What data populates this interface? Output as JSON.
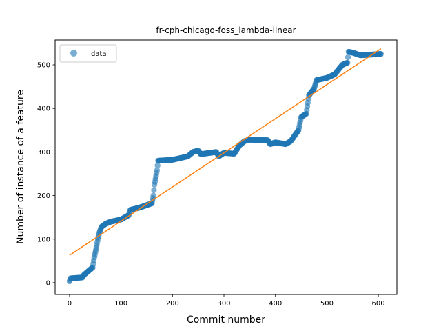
{
  "chart_data": {
    "type": "scatter",
    "title": "fr-cph-chicago-foss_lambda-linear",
    "xlabel": "Commit number",
    "ylabel": "Number of instance of a feature",
    "xlim": [
      -28,
      636
    ],
    "ylim": [
      -27,
      557
    ],
    "xticks": [
      0,
      100,
      200,
      300,
      400,
      500,
      600
    ],
    "yticks": [
      0,
      100,
      200,
      300,
      400,
      500
    ],
    "grid": false,
    "legend": {
      "position": "top-left",
      "entries": [
        "data"
      ]
    },
    "colors": {
      "data": "#1f77b4",
      "fit": "#ff7f0e"
    },
    "series": [
      {
        "name": "data",
        "kind": "scatter",
        "anchors": [
          [
            0,
            3
          ],
          [
            2,
            10
          ],
          [
            25,
            12
          ],
          [
            28,
            18
          ],
          [
            35,
            25
          ],
          [
            45,
            35
          ],
          [
            48,
            58
          ],
          [
            52,
            80
          ],
          [
            55,
            100
          ],
          [
            58,
            115
          ],
          [
            62,
            128
          ],
          [
            70,
            135
          ],
          [
            80,
            140
          ],
          [
            100,
            145
          ],
          [
            115,
            155
          ],
          [
            118,
            167
          ],
          [
            135,
            172
          ],
          [
            150,
            178
          ],
          [
            160,
            182
          ],
          [
            163,
            200
          ],
          [
            165,
            225
          ],
          [
            170,
            258
          ],
          [
            172,
            280
          ],
          [
            200,
            282
          ],
          [
            230,
            290
          ],
          [
            240,
            300
          ],
          [
            250,
            303
          ],
          [
            255,
            295
          ],
          [
            285,
            300
          ],
          [
            290,
            290
          ],
          [
            300,
            298
          ],
          [
            320,
            296
          ],
          [
            330,
            315
          ],
          [
            340,
            325
          ],
          [
            350,
            328
          ],
          [
            385,
            327
          ],
          [
            390,
            318
          ],
          [
            400,
            322
          ],
          [
            420,
            318
          ],
          [
            430,
            325
          ],
          [
            440,
            342
          ],
          [
            445,
            350
          ],
          [
            450,
            380
          ],
          [
            460,
            388
          ],
          [
            465,
            430
          ],
          [
            475,
            445
          ],
          [
            480,
            465
          ],
          [
            500,
            470
          ],
          [
            515,
            478
          ],
          [
            530,
            500
          ],
          [
            540,
            505
          ],
          [
            542,
            530
          ],
          [
            550,
            528
          ],
          [
            565,
            522
          ],
          [
            605,
            525
          ]
        ]
      },
      {
        "name": "fit",
        "kind": "line",
        "x": [
          0,
          605
        ],
        "y": [
          63,
          537
        ]
      }
    ]
  }
}
